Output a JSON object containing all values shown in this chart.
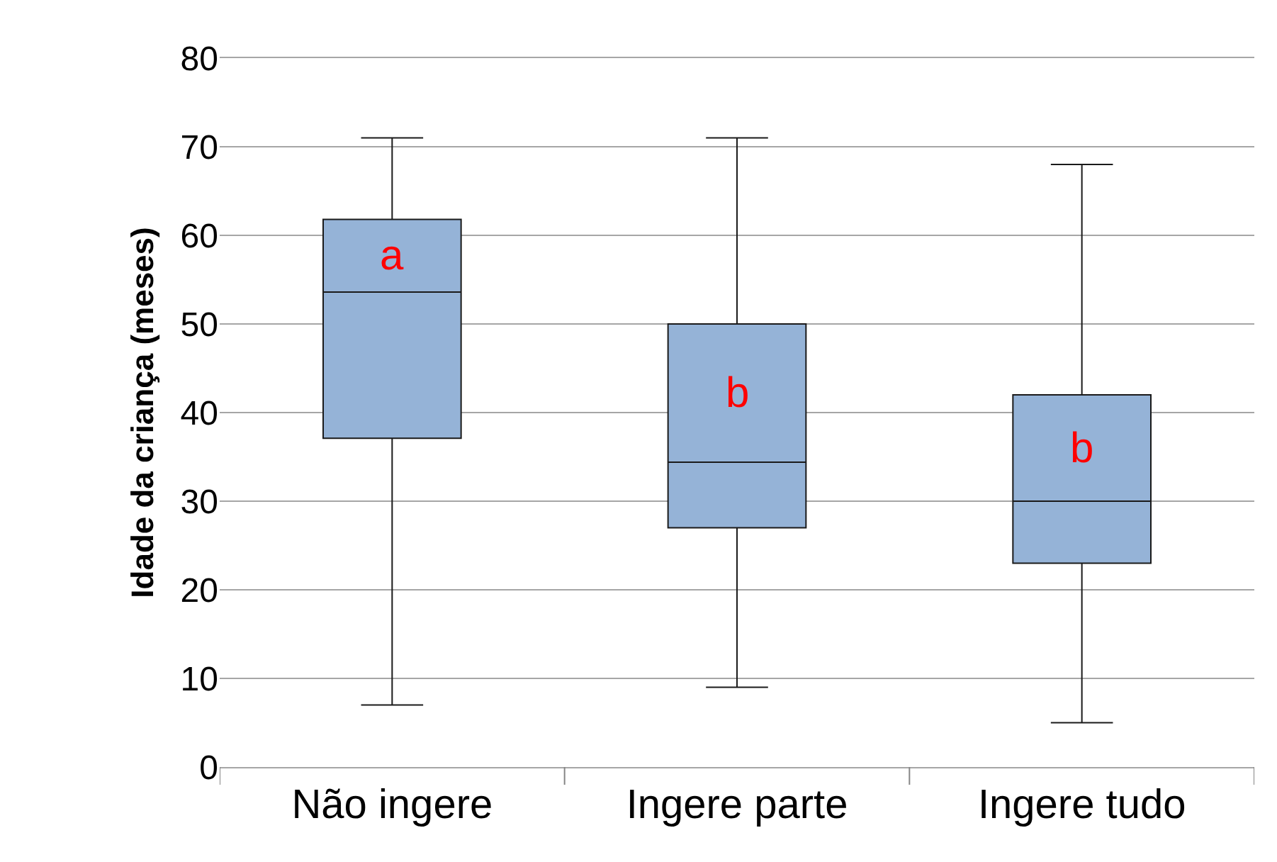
{
  "chart_data": {
    "type": "box",
    "ylabel": "Idade da criança (meses)",
    "categories": [
      "Não ingere",
      "Ingere parte",
      "Ingere tudo"
    ],
    "color": "#95b3d7",
    "boxes": [
      {
        "low": 7,
        "q1": 37.1,
        "median": 53.6,
        "q3": 61.8,
        "high": 71
      },
      {
        "low": 9,
        "q1": 27,
        "median": 34.4,
        "q3": 50,
        "high": 71
      },
      {
        "low": 5,
        "q1": 23,
        "median": 30,
        "q3": 42,
        "high": 68
      }
    ],
    "ylim": [
      0,
      80
    ],
    "yticks": [
      0,
      10,
      20,
      30,
      40,
      50,
      60,
      70,
      80
    ],
    "grid": "y",
    "annotations": [
      "a",
      "b",
      "b"
    ]
  }
}
